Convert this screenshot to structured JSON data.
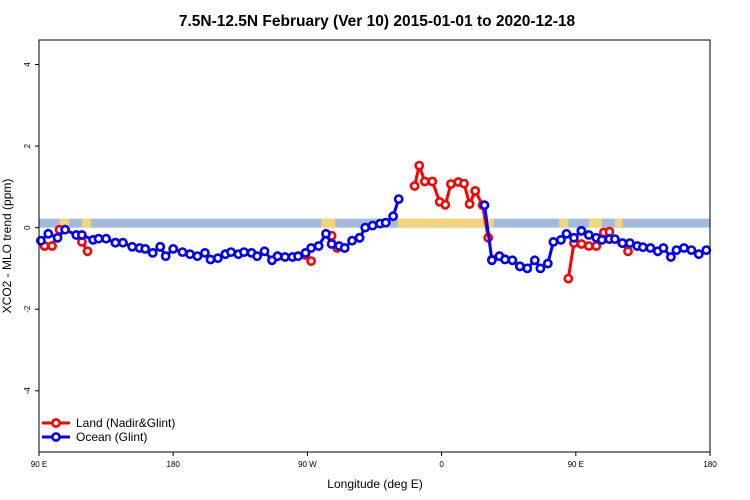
{
  "chart_data": {
    "type": "line",
    "title": "7.5N-12.5N February (Ver 10)   2015-01-01 to 2020-12-18",
    "xlabel": "Longitude (deg E)",
    "ylabel": "XCO2 - MLO trend (ppm)",
    "xlim": [
      90,
      450
    ],
    "ylim": [
      -5.5,
      4.6
    ],
    "x_ticks": [
      {
        "value": 90,
        "label": "90 E"
      },
      {
        "value": 162,
        "label": "180"
      },
      {
        "value": 234,
        "label": "90 W"
      },
      {
        "value": 306,
        "label": "0"
      },
      {
        "value": 378,
        "label": "90 E"
      },
      {
        "value": 450,
        "label": "180"
      }
    ],
    "y_ticks": [
      {
        "value": -4,
        "label": "-4"
      },
      {
        "value": -2,
        "label": "-2"
      },
      {
        "value": 0,
        "label": "0"
      },
      {
        "value": 2,
        "label": "2"
      },
      {
        "value": 4,
        "label": "4"
      }
    ],
    "land_band": {
      "y_low": 0,
      "y_high": 0.22,
      "ocean_color": "#a3b9dd",
      "land_color": "#f3d37b"
    },
    "land_regions": [
      [
        101,
        106
      ],
      [
        113,
        118
      ],
      [
        241.5,
        249
      ],
      [
        282.5,
        334
      ],
      [
        369,
        374
      ],
      [
        385,
        392
      ],
      [
        399,
        403
      ]
    ],
    "series": [
      {
        "name": "Land (Nadir&Glint)",
        "color": "#ff0000",
        "segments": [
          {
            "x": [
              93,
              97,
              101
            ],
            "y": [
              -0.45,
              -0.45,
              -0.05
            ]
          },
          {
            "x": [
              113,
              116
            ],
            "y": [
              -0.35,
              -0.58
            ]
          },
          {
            "x": [
              233,
              236
            ],
            "y": [
              -0.67,
              -0.82
            ]
          },
          {
            "x": [
              247,
              250
            ],
            "y": [
              -0.2,
              -0.5
            ]
          },
          {
            "x": [
              291.5,
              294,
              297,
              301,
              305,
              308,
              311,
              315,
              318,
              321,
              324,
              328,
              331
            ],
            "y": [
              1.02,
              1.52,
              1.13,
              1.13,
              0.63,
              0.56,
              1.07,
              1.12,
              1.08,
              0.58,
              0.9,
              0.55,
              -0.25
            ]
          },
          {
            "x": [
              333,
              337,
              340
            ],
            "y": [
              -0.78,
              -0.7,
              -0.77
            ]
          },
          {
            "x": [
              374,
              377,
              381
            ],
            "y": [
              -1.25,
              -0.38,
              -0.4
            ]
          },
          {
            "x": [
              385,
              389,
              393,
              396
            ],
            "y": [
              -0.45,
              -0.45,
              -0.12,
              -0.1
            ]
          },
          {
            "x": [
              403,
              406
            ],
            "y": [
              -0.38,
              -0.58
            ]
          }
        ]
      },
      {
        "name": "Ocean (Glint)",
        "color": "#0000ff",
        "segments": [
          {
            "x": [
              91,
              95,
              100,
              104,
              110,
              113,
              119,
              122,
              126,
              131
            ],
            "y": [
              -0.32,
              -0.15,
              -0.25,
              -0.05,
              -0.18,
              -0.18,
              -0.3,
              -0.27,
              -0.27,
              -0.37
            ]
          },
          {
            "x": [
              131,
              135,
              140,
              144,
              147,
              151,
              155
            ],
            "y": [
              -0.37,
              -0.37,
              -0.47,
              -0.5,
              -0.52,
              -0.62,
              -0.47
            ]
          },
          {
            "x": [
              155,
              158,
              162,
              167,
              171,
              175,
              179,
              182,
              186,
              190
            ],
            "y": [
              -0.47,
              -0.7,
              -0.52,
              -0.6,
              -0.65,
              -0.7,
              -0.62,
              -0.78,
              -0.75,
              -0.65
            ]
          },
          {
            "x": [
              190,
              193,
              197,
              200,
              204,
              207,
              211,
              215,
              218
            ],
            "y": [
              -0.65,
              -0.6,
              -0.65,
              -0.6,
              -0.62,
              -0.7,
              -0.58,
              -0.8,
              -0.7
            ]
          },
          {
            "x": [
              218,
              222,
              226,
              229,
              233,
              236,
              240,
              244,
              247,
              251,
              254,
              258,
              262
            ],
            "y": [
              -0.7,
              -0.72,
              -0.72,
              -0.7,
              -0.62,
              -0.5,
              -0.45,
              -0.15,
              -0.4,
              -0.45,
              -0.5,
              -0.32,
              -0.25
            ]
          },
          {
            "x": [
              262,
              265,
              269,
              273,
              276,
              280,
              283
            ],
            "y": [
              -0.25,
              0.0,
              0.05,
              0.1,
              0.12,
              0.28,
              0.7
            ]
          },
          {
            "x": [
              329,
              333,
              337,
              340,
              344,
              348
            ],
            "y": [
              0.55,
              -0.8,
              -0.7,
              -0.78,
              -0.8,
              -0.95
            ]
          },
          {
            "x": [
              348,
              352,
              356,
              359,
              363,
              366,
              370,
              373,
              377,
              381
            ],
            "y": [
              -0.95,
              -1.0,
              -0.8,
              -1.0,
              -0.88,
              -0.35,
              -0.3,
              -0.15,
              -0.25,
              -0.08
            ]
          },
          {
            "x": [
              381,
              385,
              389,
              392,
              396,
              399,
              403
            ],
            "y": [
              -0.08,
              -0.18,
              -0.25,
              -0.3,
              -0.28,
              -0.28,
              -0.38
            ]
          },
          {
            "x": [
              403,
              407,
              411,
              414,
              418,
              422,
              425,
              429,
              432,
              436,
              440,
              444,
              448
            ],
            "y": [
              -0.38,
              -0.38,
              -0.45,
              -0.48,
              -0.5,
              -0.58,
              -0.5,
              -0.72,
              -0.55,
              -0.5,
              -0.55,
              -0.65,
              -0.55
            ]
          }
        ]
      }
    ],
    "legend": {
      "position": "bottom-left",
      "entries": [
        "Land (Nadir&Glint)",
        "Ocean (Glint)"
      ]
    }
  }
}
